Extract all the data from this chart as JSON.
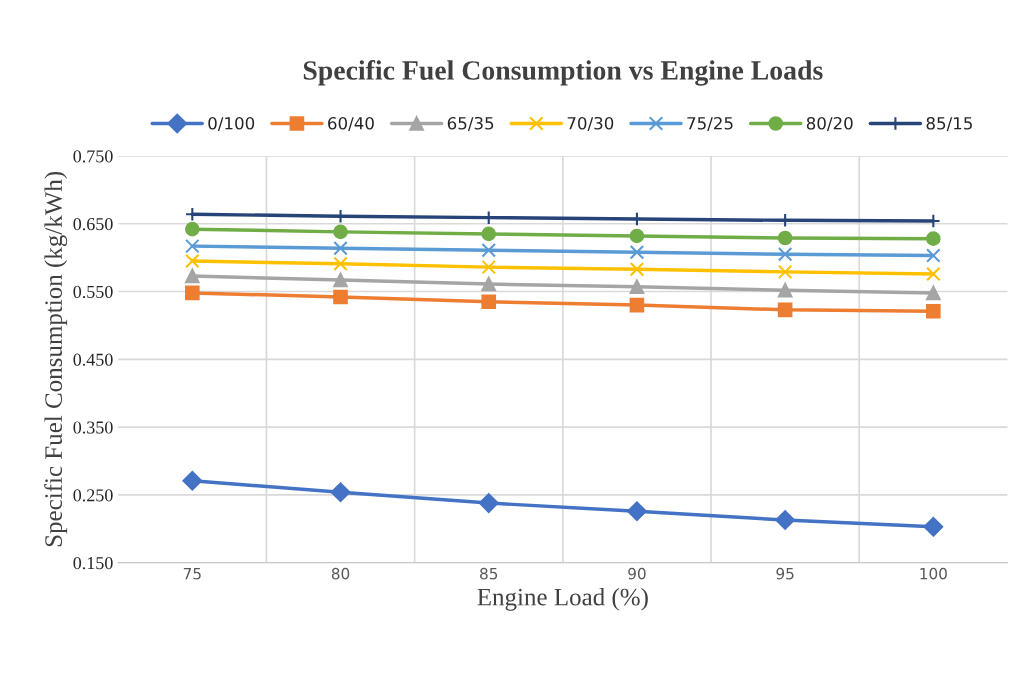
{
  "chart_data": {
    "type": "line",
    "title": "Specific Fuel Consumption vs Engine Loads",
    "xlabel": "Engine Load (%)",
    "ylabel": "Specific Fuel Consumption (kg/kWh)",
    "categories": [
      "75",
      "80",
      "85",
      "90",
      "95",
      "100"
    ],
    "ylim": [
      0.15,
      0.75
    ],
    "yticks": [
      {
        "value": 0.15,
        "label": "0.150"
      },
      {
        "value": 0.25,
        "label": "0.250"
      },
      {
        "value": 0.35,
        "label": "0.350"
      },
      {
        "value": 0.45,
        "label": "0.450"
      },
      {
        "value": 0.55,
        "label": "0.550"
      },
      {
        "value": 0.65,
        "label": "0.650"
      },
      {
        "value": 0.75,
        "label": "0.750"
      }
    ],
    "grid": true,
    "legend": "top",
    "line_style": "solid",
    "series": [
      {
        "name": "0/100",
        "color": "#4472c4",
        "marker": "diamond",
        "values": [
          0.271,
          0.254,
          0.238,
          0.226,
          0.213,
          0.203
        ]
      },
      {
        "name": "60/40",
        "color": "#ed7d31",
        "marker": "square",
        "values": [
          0.548,
          0.542,
          0.535,
          0.53,
          0.523,
          0.521
        ]
      },
      {
        "name": "65/35",
        "color": "#a5a5a5",
        "marker": "triangle",
        "values": [
          0.573,
          0.567,
          0.561,
          0.557,
          0.552,
          0.548
        ]
      },
      {
        "name": "70/30",
        "color": "#ffc000",
        "marker": "cross",
        "values": [
          0.595,
          0.591,
          0.586,
          0.583,
          0.579,
          0.576
        ]
      },
      {
        "name": "75/25",
        "color": "#5b9bd5",
        "marker": "cross",
        "values": [
          0.617,
          0.614,
          0.611,
          0.608,
          0.605,
          0.603
        ]
      },
      {
        "name": "80/20",
        "color": "#70ad47",
        "marker": "circle",
        "values": [
          0.642,
          0.638,
          0.635,
          0.632,
          0.629,
          0.628
        ]
      },
      {
        "name": "85/15",
        "color": "#264478",
        "marker": "plus",
        "values": [
          0.664,
          0.661,
          0.659,
          0.657,
          0.655,
          0.654
        ]
      }
    ]
  }
}
